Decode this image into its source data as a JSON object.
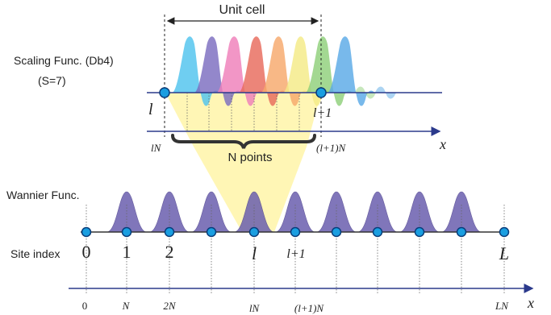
{
  "labels": {
    "unit_cell": "Unit cell",
    "scaling_func": "Scaling Func. (Db4)",
    "scaling_param": "(S=7)",
    "wannier_func": "Wannier Func.",
    "site_index": "Site index",
    "n_points": "N points"
  },
  "top_axis": {
    "x_label": "x",
    "tick_l": "lN",
    "tick_l1": "(l+1)N"
  },
  "top_sites": {
    "left": "l",
    "right": "l+1"
  },
  "site_labels": [
    "0",
    "1",
    "2",
    "l",
    "l+1",
    "L"
  ],
  "bottom_axis": {
    "x_label": "x",
    "ticks": [
      "0",
      "N",
      "2N",
      "lN",
      "(l+1)N",
      "LN"
    ]
  },
  "colors": {
    "axis": "#2b3a8c",
    "site_fill": "#1a9ee0",
    "site_stroke": "#0a3d7a",
    "wannier_fill": "#6b5fae",
    "projection": "#fff5a8",
    "scaling_palette": [
      "#4fc3ee",
      "#7b6cc0",
      "#ef7fb9",
      "#e86a5c",
      "#f6a86b",
      "#f4ea86",
      "#8fcf7a",
      "#5aa9e6"
    ]
  }
}
